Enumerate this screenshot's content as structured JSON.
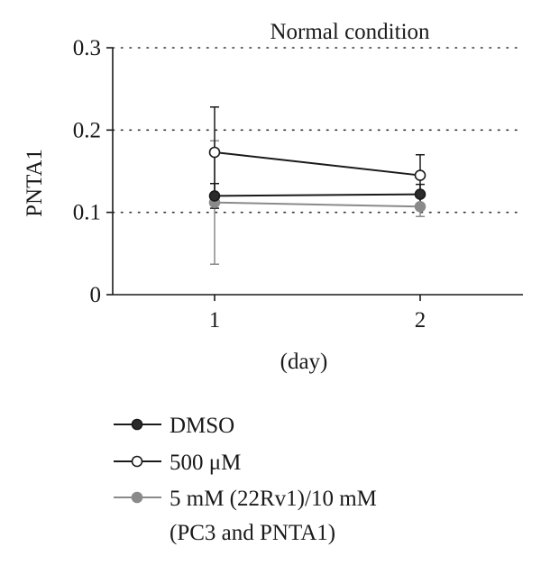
{
  "chart_data": {
    "type": "line",
    "title": "Normal condition",
    "xlabel": "(day)",
    "ylabel": "PNTA1",
    "categories": [
      "1",
      "2"
    ],
    "ylim": [
      0,
      0.3
    ],
    "yticks": [
      "0",
      "0.1",
      "0.2",
      "0.3"
    ],
    "grid": "horizontal dotted",
    "legend_position": "bottom",
    "series": [
      {
        "name": "DMSO",
        "marker": "filled-black",
        "color": "#1a1a1a",
        "values": [
          0.12,
          0.122
        ],
        "error": [
          0.015,
          0.012
        ]
      },
      {
        "name": "500 μM",
        "marker": "open",
        "color": "#1a1a1a",
        "values": [
          0.173,
          0.145
        ],
        "error": [
          0.055,
          0.025
        ]
      },
      {
        "name": "5 mM (22Rv1)/10 mM (PC3 and PNTA1)",
        "name_lines": [
          "5 mM (22Rv1)/10 mM",
          "(PC3 and PNTA1)"
        ],
        "marker": "filled-gray",
        "color": "#8a8a8a",
        "values": [
          0.112,
          0.107
        ],
        "error": [
          0.075,
          0.012
        ]
      }
    ]
  }
}
